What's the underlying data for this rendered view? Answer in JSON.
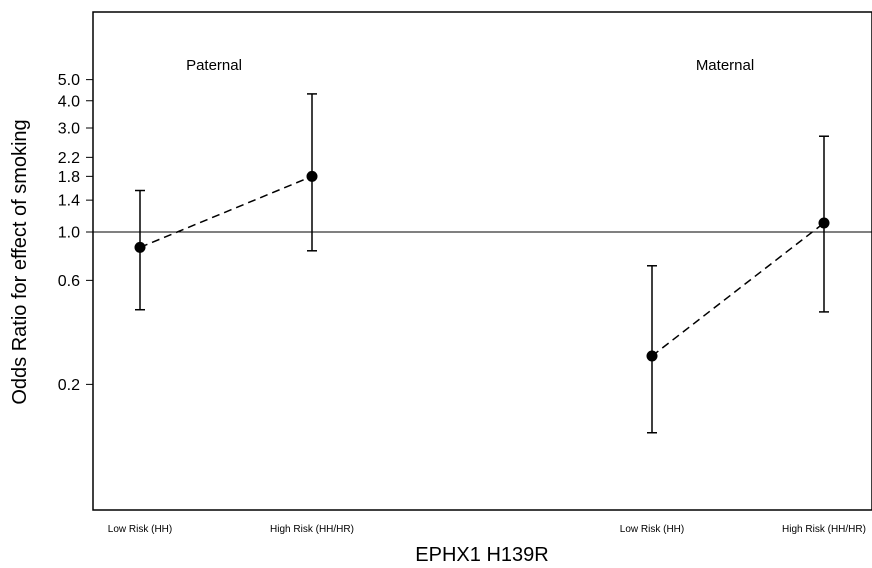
{
  "chart_data": {
    "type": "scatter",
    "title": "",
    "xlabel": "EPHX1 H139R",
    "ylabel": "Odds Ratio for effect of smoking",
    "yscale": "log",
    "ylim": [
      0.1,
      7.0
    ],
    "yticks": [
      0.2,
      0.6,
      1.0,
      1.4,
      1.8,
      2.2,
      3.0,
      4.0,
      5.0
    ],
    "ytick_labels": [
      "0.2",
      "0.6",
      "1.0",
      "1.4",
      "1.8",
      "2.2",
      "3.0",
      "4.0",
      "5.0"
    ],
    "reference_line": 1.0,
    "categories": [
      "Low Risk (HH)",
      "High Risk (HH/HR)",
      "Low Risk (HH)",
      "High Risk (HH/HR)"
    ],
    "groups": [
      {
        "label": "Paternal",
        "points": [
          {
            "category": "Low Risk (HH)",
            "or": 0.85,
            "lower": 0.44,
            "upper": 1.55
          },
          {
            "category": "High Risk (HH/HR)",
            "or": 1.8,
            "lower": 0.82,
            "upper": 4.3
          }
        ]
      },
      {
        "label": "Maternal",
        "points": [
          {
            "category": "Low Risk (HH)",
            "or": 0.27,
            "lower": 0.12,
            "upper": 0.7
          },
          {
            "category": "High Risk (HH/HR)",
            "or": 1.1,
            "lower": 0.43,
            "upper": 2.75
          }
        ]
      }
    ],
    "grid": false,
    "legend": "none"
  }
}
